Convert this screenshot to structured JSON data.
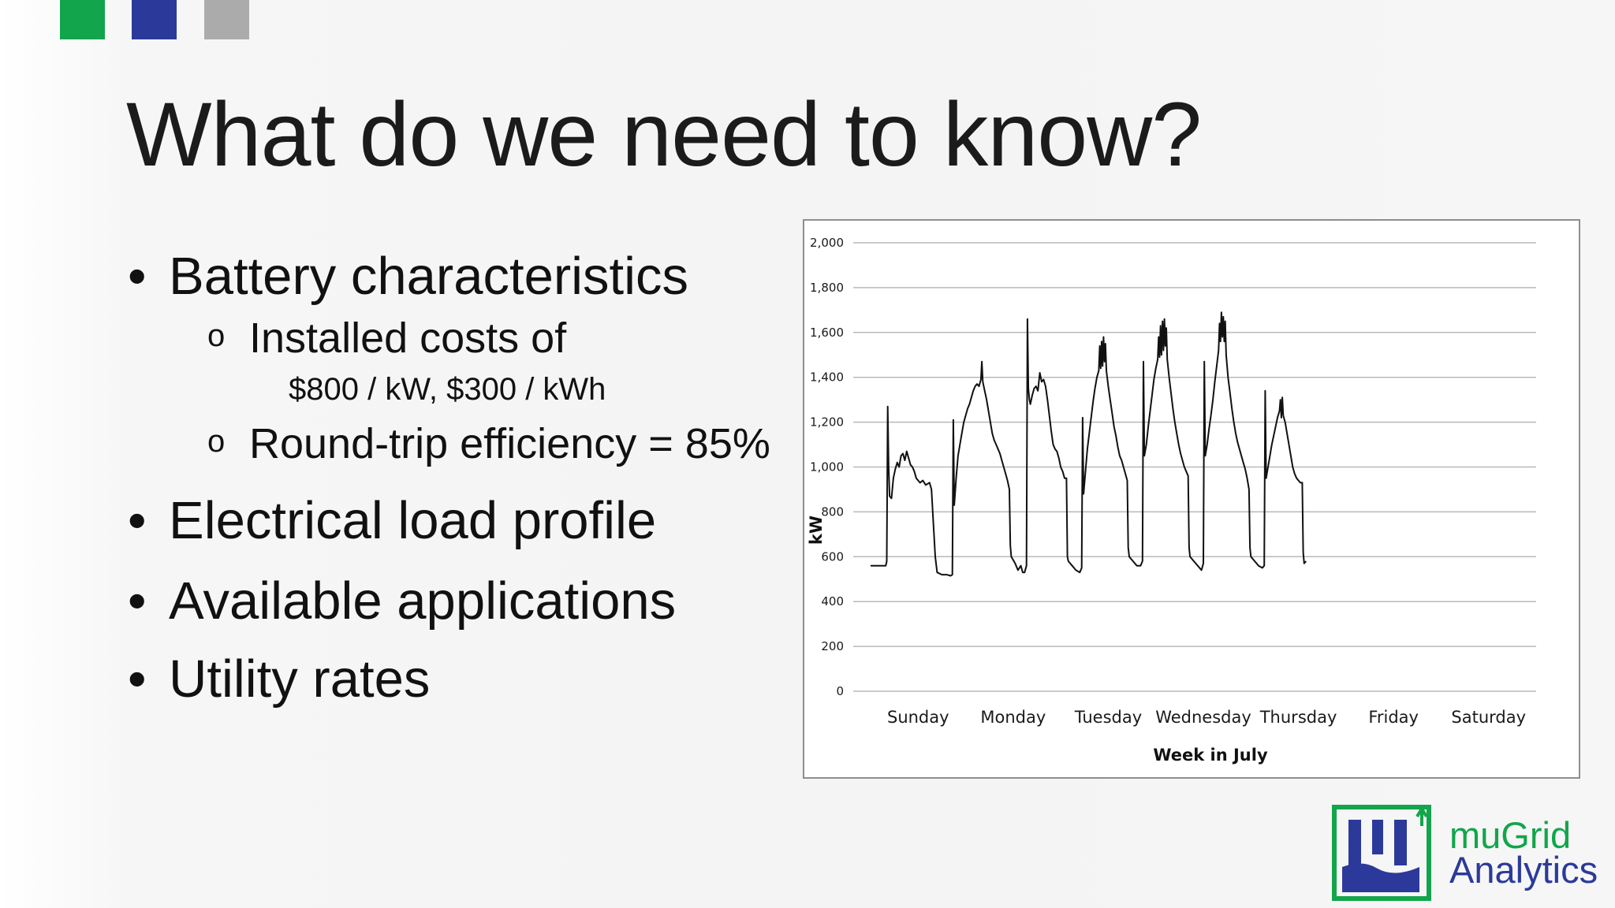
{
  "slide": {
    "title": "What do we need to know?",
    "bullets": {
      "battery": "Battery characteristics",
      "installed_costs": "Installed costs of",
      "costs_values": "$800 / kW, $300 / kWh",
      "efficiency": "Round-trip efficiency = 85%",
      "load_profile": "Electrical load profile",
      "applications": "Available applications",
      "utility_rates": "Utility rates"
    },
    "bullet_glyph": "•",
    "sub_bullet_glyph": "o",
    "accent_colors": {
      "green": "#13a54b",
      "blue": "#2b3a9a",
      "gray": "#ababab"
    }
  },
  "logo": {
    "line1": "muGrid",
    "line2": "Analytics",
    "brand_green": "#13a54b",
    "brand_blue": "#2b3a9a"
  },
  "chart_data": {
    "type": "line",
    "title": "",
    "xlabel": "Week in July",
    "ylabel": "kW",
    "ylim": [
      0,
      2000
    ],
    "yticks": [
      0,
      200,
      400,
      600,
      800,
      1000,
      1200,
      1400,
      1600,
      1800,
      2000
    ],
    "ytick_labels": [
      "0",
      "200",
      "400",
      "600",
      "800",
      "1,000",
      "1,200",
      "1,400",
      "1,600",
      "1,800",
      "2,000"
    ],
    "categories": [
      "Sunday",
      "Monday",
      "Tuesday",
      "Wednesday",
      "Thursday",
      "Friday",
      "Saturday"
    ],
    "grid": true,
    "legend": "none",
    "line_color": "#111111",
    "x_unit": "day index (0 = start of Sunday)",
    "series": [
      {
        "name": "",
        "points": [
          [
            0.0,
            560
          ],
          [
            0.12,
            560
          ],
          [
            0.16,
            560
          ],
          [
            0.17,
            580
          ],
          [
            0.18,
            1270
          ],
          [
            0.19,
            1000
          ],
          [
            0.2,
            870
          ],
          [
            0.22,
            860
          ],
          [
            0.24,
            950
          ],
          [
            0.26,
            990
          ],
          [
            0.28,
            1020
          ],
          [
            0.3,
            1000
          ],
          [
            0.32,
            1050
          ],
          [
            0.34,
            1060
          ],
          [
            0.36,
            1030
          ],
          [
            0.38,
            1070
          ],
          [
            0.4,
            1040
          ],
          [
            0.42,
            1010
          ],
          [
            0.44,
            1000
          ],
          [
            0.46,
            980
          ],
          [
            0.48,
            950
          ],
          [
            0.5,
            940
          ],
          [
            0.52,
            930
          ],
          [
            0.55,
            940
          ],
          [
            0.58,
            920
          ],
          [
            0.62,
            930
          ],
          [
            0.64,
            900
          ],
          [
            0.66,
            750
          ],
          [
            0.68,
            600
          ],
          [
            0.7,
            530
          ],
          [
            0.75,
            520
          ],
          [
            0.8,
            520
          ],
          [
            0.84,
            515
          ],
          [
            0.86,
            520
          ],
          [
            0.87,
            1210
          ],
          [
            0.88,
            830
          ],
          [
            0.9,
            950
          ],
          [
            0.92,
            1050
          ],
          [
            0.94,
            1100
          ],
          [
            0.96,
            1150
          ],
          [
            0.98,
            1200
          ],
          [
            1.0,
            1230
          ],
          [
            1.02,
            1260
          ],
          [
            1.04,
            1280
          ],
          [
            1.06,
            1310
          ],
          [
            1.08,
            1340
          ],
          [
            1.1,
            1360
          ],
          [
            1.12,
            1370
          ],
          [
            1.14,
            1360
          ],
          [
            1.16,
            1390
          ],
          [
            1.17,
            1470
          ],
          [
            1.18,
            1380
          ],
          [
            1.2,
            1340
          ],
          [
            1.22,
            1300
          ],
          [
            1.24,
            1250
          ],
          [
            1.26,
            1200
          ],
          [
            1.28,
            1150
          ],
          [
            1.3,
            1120
          ],
          [
            1.32,
            1100
          ],
          [
            1.34,
            1080
          ],
          [
            1.36,
            1060
          ],
          [
            1.38,
            1030
          ],
          [
            1.4,
            1000
          ],
          [
            1.42,
            970
          ],
          [
            1.44,
            940
          ],
          [
            1.46,
            900
          ],
          [
            1.47,
            650
          ],
          [
            1.48,
            600
          ],
          [
            1.52,
            570
          ],
          [
            1.55,
            540
          ],
          [
            1.58,
            560
          ],
          [
            1.6,
            530
          ],
          [
            1.62,
            530
          ],
          [
            1.64,
            560
          ],
          [
            1.65,
            1660
          ],
          [
            1.66,
            1350
          ],
          [
            1.67,
            1300
          ],
          [
            1.68,
            1280
          ],
          [
            1.7,
            1320
          ],
          [
            1.72,
            1350
          ],
          [
            1.74,
            1360
          ],
          [
            1.76,
            1340
          ],
          [
            1.78,
            1420
          ],
          [
            1.8,
            1380
          ],
          [
            1.82,
            1390
          ],
          [
            1.84,
            1360
          ],
          [
            1.86,
            1300
          ],
          [
            1.88,
            1230
          ],
          [
            1.9,
            1160
          ],
          [
            1.92,
            1100
          ],
          [
            1.94,
            1080
          ],
          [
            1.96,
            1070
          ],
          [
            1.98,
            1040
          ],
          [
            2.0,
            1000
          ],
          [
            2.02,
            980
          ],
          [
            2.04,
            950
          ],
          [
            2.06,
            950
          ],
          [
            2.07,
            600
          ],
          [
            2.08,
            580
          ],
          [
            2.12,
            560
          ],
          [
            2.16,
            540
          ],
          [
            2.2,
            530
          ],
          [
            2.22,
            550
          ],
          [
            2.23,
            1220
          ],
          [
            2.24,
            880
          ],
          [
            2.26,
            980
          ],
          [
            2.28,
            1080
          ],
          [
            2.3,
            1150
          ],
          [
            2.32,
            1220
          ],
          [
            2.34,
            1290
          ],
          [
            2.36,
            1350
          ],
          [
            2.38,
            1400
          ],
          [
            2.4,
            1430
          ],
          [
            2.41,
            1540
          ],
          [
            2.42,
            1440
          ],
          [
            2.43,
            1560
          ],
          [
            2.44,
            1450
          ],
          [
            2.45,
            1580
          ],
          [
            2.46,
            1470
          ],
          [
            2.47,
            1550
          ],
          [
            2.48,
            1430
          ],
          [
            2.5,
            1360
          ],
          [
            2.52,
            1300
          ],
          [
            2.54,
            1240
          ],
          [
            2.56,
            1180
          ],
          [
            2.58,
            1140
          ],
          [
            2.6,
            1090
          ],
          [
            2.62,
            1050
          ],
          [
            2.64,
            1030
          ],
          [
            2.66,
            1000
          ],
          [
            2.68,
            970
          ],
          [
            2.7,
            940
          ],
          [
            2.71,
            640
          ],
          [
            2.72,
            600
          ],
          [
            2.76,
            580
          ],
          [
            2.8,
            560
          ],
          [
            2.84,
            560
          ],
          [
            2.86,
            580
          ],
          [
            2.87,
            1470
          ],
          [
            2.88,
            1050
          ],
          [
            2.9,
            1100
          ],
          [
            2.92,
            1180
          ],
          [
            2.94,
            1250
          ],
          [
            2.96,
            1320
          ],
          [
            2.98,
            1390
          ],
          [
            3.0,
            1440
          ],
          [
            3.02,
            1480
          ],
          [
            3.03,
            1580
          ],
          [
            3.04,
            1490
          ],
          [
            3.05,
            1630
          ],
          [
            3.06,
            1500
          ],
          [
            3.07,
            1650
          ],
          [
            3.08,
            1520
          ],
          [
            3.09,
            1660
          ],
          [
            3.1,
            1540
          ],
          [
            3.11,
            1620
          ],
          [
            3.12,
            1480
          ],
          [
            3.14,
            1400
          ],
          [
            3.16,
            1330
          ],
          [
            3.18,
            1260
          ],
          [
            3.2,
            1200
          ],
          [
            3.22,
            1150
          ],
          [
            3.24,
            1100
          ],
          [
            3.26,
            1060
          ],
          [
            3.28,
            1030
          ],
          [
            3.3,
            1000
          ],
          [
            3.32,
            980
          ],
          [
            3.34,
            960
          ],
          [
            3.35,
            640
          ],
          [
            3.36,
            600
          ],
          [
            3.4,
            580
          ],
          [
            3.44,
            560
          ],
          [
            3.48,
            540
          ],
          [
            3.5,
            570
          ],
          [
            3.51,
            1470
          ],
          [
            3.52,
            1050
          ],
          [
            3.54,
            1100
          ],
          [
            3.56,
            1170
          ],
          [
            3.58,
            1230
          ],
          [
            3.6,
            1300
          ],
          [
            3.62,
            1380
          ],
          [
            3.64,
            1450
          ],
          [
            3.66,
            1520
          ],
          [
            3.67,
            1640
          ],
          [
            3.68,
            1560
          ],
          [
            3.69,
            1690
          ],
          [
            3.7,
            1580
          ],
          [
            3.71,
            1670
          ],
          [
            3.72,
            1560
          ],
          [
            3.73,
            1650
          ],
          [
            3.74,
            1500
          ],
          [
            3.76,
            1400
          ],
          [
            3.78,
            1330
          ],
          [
            3.8,
            1260
          ],
          [
            3.82,
            1200
          ],
          [
            3.84,
            1150
          ],
          [
            3.86,
            1110
          ],
          [
            3.88,
            1080
          ],
          [
            3.9,
            1050
          ],
          [
            3.92,
            1020
          ],
          [
            3.94,
            990
          ],
          [
            3.96,
            950
          ],
          [
            3.98,
            900
          ],
          [
            3.99,
            640
          ],
          [
            4.0,
            600
          ],
          [
            4.04,
            580
          ],
          [
            4.08,
            560
          ],
          [
            4.12,
            550
          ],
          [
            4.14,
            560
          ],
          [
            4.15,
            1340
          ],
          [
            4.16,
            950
          ],
          [
            4.18,
            1000
          ],
          [
            4.2,
            1050
          ],
          [
            4.22,
            1100
          ],
          [
            4.24,
            1140
          ],
          [
            4.26,
            1180
          ],
          [
            4.28,
            1220
          ],
          [
            4.3,
            1250
          ],
          [
            4.31,
            1300
          ],
          [
            4.32,
            1220
          ],
          [
            4.33,
            1310
          ],
          [
            4.34,
            1230
          ],
          [
            4.36,
            1200
          ],
          [
            4.38,
            1150
          ],
          [
            4.4,
            1100
          ],
          [
            4.42,
            1050
          ],
          [
            4.44,
            1000
          ],
          [
            4.46,
            970
          ],
          [
            4.48,
            950
          ],
          [
            4.5,
            940
          ],
          [
            4.52,
            930
          ],
          [
            4.54,
            930
          ],
          [
            4.55,
            620
          ],
          [
            4.56,
            570
          ],
          [
            4.58,
            580
          ]
        ]
      }
    ]
  }
}
